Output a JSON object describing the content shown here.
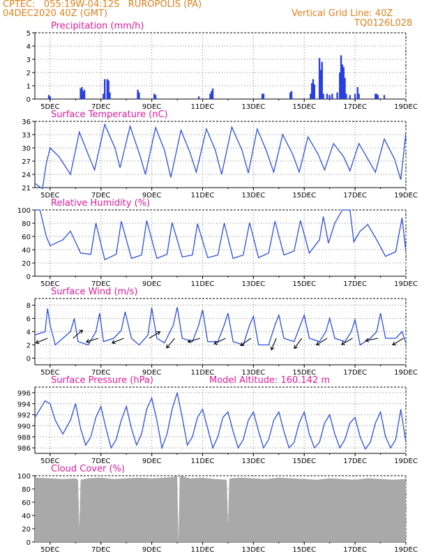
{
  "header": {
    "line1": "CPTEC:   055:19W-04:12S   RUROPOLIS (PA)",
    "line2": "04DEC2020 40Z (GMT)",
    "grid_note": "Vertical Grid Line: 40Z",
    "code": "TQ0126L028"
  },
  "colors": {
    "line": "#2a4de0",
    "bar": "#2a3fe0",
    "cloud": "#a9a9a9",
    "title": "#e01a9a",
    "header": "#e0801a",
    "arrow": "#000000"
  },
  "x_axis": {
    "ticks": [
      "5DEC",
      "7DEC",
      "9DEC",
      "11DEC",
      "13DEC",
      "15DEC",
      "17DEC",
      "19DEC"
    ],
    "tick_days": [
      5,
      7,
      9,
      11,
      13,
      15,
      17,
      19
    ],
    "range_days": [
      4.4,
      19.0
    ]
  },
  "chart_data": [
    {
      "type": "bar",
      "title": "Precipitation (mm/h)",
      "ylim": [
        0,
        5
      ],
      "yticks": [
        0,
        1,
        2,
        3,
        4,
        5
      ],
      "series": [
        {
          "x": [
            4.95,
            5.0,
            6.2,
            6.25,
            6.3,
            6.35,
            7.1,
            7.15,
            7.25,
            7.3,
            7.35,
            8.45,
            8.5,
            9.1,
            9.15,
            10.85,
            11.3,
            11.35,
            11.4,
            13.35,
            13.4,
            14.45,
            14.5,
            15.25,
            15.3,
            15.35,
            15.4,
            15.6,
            15.65,
            15.7,
            15.75,
            15.9,
            16.0,
            16.1,
            16.3,
            16.4,
            16.45,
            16.5,
            16.55,
            16.6,
            16.65,
            16.8,
            17.0,
            17.1,
            17.15,
            17.8,
            17.85,
            17.9,
            18.15
          ],
          "values": [
            0.3,
            0.2,
            0.8,
            0.9,
            0.6,
            0.7,
            0.4,
            1.5,
            1.5,
            1.4,
            0.5,
            0.7,
            0.5,
            0.4,
            0.3,
            0.2,
            0.4,
            0.6,
            0.8,
            0.4,
            0.4,
            0.5,
            0.6,
            0.4,
            1.2,
            1.5,
            1.1,
            3.1,
            2.2,
            2.8,
            0.4,
            0.4,
            0.3,
            0.4,
            0.5,
            2.0,
            3.3,
            2.6,
            2.4,
            1.6,
            0.4,
            0.3,
            0.4,
            0.9,
            0.4,
            0.4,
            0.4,
            0.3,
            0.3
          ]
        }
      ]
    },
    {
      "type": "line",
      "title": "Surface Temperature (nC)",
      "ylim": [
        21,
        36
      ],
      "yticks": [
        21,
        24,
        27,
        30,
        33,
        36
      ],
      "series": [
        {
          "x": [
            4.4,
            4.55,
            4.7,
            4.85,
            5.0,
            5.35,
            5.8,
            6.15,
            6.5,
            6.75,
            7.15,
            7.55,
            7.75,
            8.15,
            8.55,
            8.75,
            9.15,
            9.5,
            9.75,
            10.15,
            10.5,
            10.75,
            11.15,
            11.5,
            11.75,
            12.15,
            12.55,
            12.8,
            13.15,
            13.5,
            13.8,
            14.15,
            14.55,
            14.8,
            15.15,
            15.55,
            15.8,
            16.15,
            16.55,
            16.8,
            17.15,
            17.5,
            17.8,
            18.15,
            18.55,
            18.8,
            19.0
          ],
          "values": [
            22.0,
            21.3,
            20.8,
            26.5,
            30.0,
            28.0,
            24.0,
            33.6,
            28.5,
            25.0,
            35.3,
            30.0,
            25.5,
            34.9,
            28.0,
            24.0,
            34.6,
            29.5,
            23.3,
            34.0,
            29.0,
            24.5,
            34.3,
            29.5,
            24.0,
            34.7,
            29.5,
            24.3,
            34.3,
            29.5,
            24.5,
            33.0,
            28.5,
            24.5,
            32.5,
            28.5,
            25.0,
            31.0,
            28.0,
            24.8,
            31.0,
            27.5,
            24.5,
            32.0,
            27.5,
            22.8,
            33.5
          ]
        }
      ]
    },
    {
      "type": "line",
      "title": "Relative Humidity (%)",
      "ylim": [
        0,
        100
      ],
      "yticks": [
        0,
        20,
        40,
        60,
        80,
        100
      ],
      "series": [
        {
          "x": [
            4.4,
            4.6,
            4.85,
            5.0,
            5.5,
            5.8,
            6.2,
            6.6,
            6.8,
            7.15,
            7.6,
            7.8,
            8.2,
            8.6,
            8.8,
            9.2,
            9.6,
            9.8,
            10.2,
            10.6,
            10.8,
            11.2,
            11.6,
            11.85,
            12.2,
            12.6,
            12.85,
            13.2,
            13.6,
            13.85,
            14.2,
            14.6,
            14.85,
            15.2,
            15.6,
            15.75,
            15.95,
            16.2,
            16.5,
            16.8,
            16.95,
            17.2,
            17.5,
            17.85,
            18.2,
            18.6,
            18.85,
            19.0
          ],
          "values": [
            100,
            100,
            60,
            46,
            55,
            68,
            35,
            33,
            80,
            25,
            33,
            83,
            27,
            32,
            84,
            27,
            33,
            81,
            29,
            32,
            79,
            28,
            32,
            80,
            27,
            32,
            81,
            28,
            35,
            83,
            32,
            38,
            84,
            35,
            55,
            90,
            50,
            80,
            100,
            100,
            52,
            68,
            78,
            55,
            30,
            37,
            88,
            37
          ]
        }
      ]
    },
    {
      "type": "line",
      "title": "Surface Wind (m/s)",
      "ylim": [
        0,
        8
      ],
      "yticks": [
        0,
        2,
        4,
        6,
        8
      ],
      "series": [
        {
          "x": [
            4.4,
            4.8,
            4.9,
            5.0,
            5.2,
            5.5,
            5.8,
            5.95,
            6.1,
            6.5,
            6.8,
            6.95,
            7.1,
            7.5,
            7.8,
            7.95,
            8.2,
            8.5,
            8.85,
            9.0,
            9.2,
            9.5,
            9.85,
            10.0,
            10.2,
            10.6,
            10.85,
            11.0,
            11.2,
            11.6,
            11.85,
            12.0,
            12.2,
            12.6,
            12.85,
            13.0,
            13.2,
            13.6,
            13.85,
            14.0,
            14.2,
            14.6,
            14.85,
            15.0,
            15.2,
            15.6,
            15.85,
            16.0,
            16.2,
            16.6,
            16.85,
            17.0,
            17.2,
            17.6,
            17.85,
            18.0,
            18.2,
            18.6,
            18.85,
            19.0
          ],
          "values": [
            3.5,
            4.0,
            7.5,
            5.0,
            2.0,
            3.0,
            4.0,
            6.0,
            2.5,
            2.0,
            4.0,
            6.8,
            2.5,
            3.0,
            4.2,
            7.0,
            3.0,
            2.0,
            3.5,
            7.6,
            3.0,
            2.3,
            5.0,
            7.7,
            3.0,
            2.5,
            5.0,
            7.3,
            2.5,
            2.5,
            5.0,
            6.8,
            2.5,
            2.0,
            5.0,
            6.3,
            2.0,
            2.0,
            5.0,
            6.5,
            3.0,
            2.5,
            5.0,
            6.5,
            3.0,
            2.5,
            4.0,
            6.0,
            3.0,
            2.5,
            4.0,
            5.8,
            2.0,
            3.0,
            4.0,
            6.8,
            3.0,
            3.0,
            4.0,
            2.3
          ]
        }
      ],
      "wind_arrows": {
        "x": [
          4.9,
          5.9,
          6.9,
          7.9,
          8.9,
          9.9,
          10.9,
          11.9,
          12.9,
          13.9,
          14.9,
          15.9,
          16.9,
          17.9,
          18.9
        ],
        "u": [
          -1.0,
          0.7,
          -1.0,
          -1.0,
          1.3,
          -0.5,
          -1.0,
          -1.0,
          -0.7,
          -0.3,
          -0.5,
          -0.8,
          -0.7,
          -1.0,
          -0.8
        ],
        "v": [
          -0.4,
          0.6,
          -0.3,
          -0.4,
          0.8,
          -0.6,
          -0.3,
          -0.5,
          -0.5,
          -0.7,
          -0.7,
          -0.5,
          -0.4,
          -0.2,
          -0.5
        ]
      }
    },
    {
      "type": "line",
      "title": "Surface Pressure (hPa)",
      "annotation": "Model Altitude: 160.142 m",
      "ylim": [
        985,
        997
      ],
      "yticks": [
        986,
        988,
        990,
        992,
        994,
        996
      ],
      "series": [
        {
          "x": [
            4.4,
            4.6,
            4.8,
            5.0,
            5.2,
            5.5,
            5.8,
            6.0,
            6.2,
            6.4,
            6.6,
            6.8,
            7.0,
            7.2,
            7.4,
            7.6,
            7.8,
            8.0,
            8.2,
            8.4,
            8.6,
            8.8,
            9.0,
            9.2,
            9.4,
            9.6,
            9.8,
            10.0,
            10.2,
            10.4,
            10.6,
            10.8,
            11.0,
            11.2,
            11.4,
            11.6,
            11.8,
            12.0,
            12.2,
            12.4,
            12.6,
            12.8,
            13.0,
            13.2,
            13.4,
            13.6,
            13.8,
            14.0,
            14.2,
            14.4,
            14.6,
            14.8,
            15.0,
            15.2,
            15.4,
            15.6,
            15.8,
            16.0,
            16.2,
            16.4,
            16.6,
            16.8,
            17.0,
            17.2,
            17.4,
            17.6,
            17.8,
            18.0,
            18.2,
            18.4,
            18.6,
            18.8,
            19.0
          ],
          "values": [
            991.5,
            993.0,
            994.5,
            994.0,
            991.0,
            988.5,
            991.0,
            994.0,
            989.5,
            986.5,
            988.0,
            991.5,
            993.5,
            989.5,
            986.0,
            987.5,
            991.0,
            993.5,
            989.5,
            986.5,
            988.5,
            993.0,
            995.0,
            991.0,
            986.0,
            988.5,
            993.0,
            996.0,
            991.5,
            986.5,
            988.0,
            991.5,
            993.0,
            989.5,
            986.0,
            988.0,
            991.5,
            992.5,
            989.0,
            986.0,
            987.5,
            991.0,
            992.5,
            989.0,
            986.0,
            987.5,
            991.0,
            992.5,
            989.0,
            986.0,
            987.0,
            990.5,
            992.5,
            988.5,
            986.0,
            987.0,
            990.5,
            992.0,
            988.5,
            986.0,
            987.5,
            990.5,
            991.5,
            988.0,
            985.8,
            987.0,
            990.5,
            992.5,
            988.0,
            986.0,
            987.5,
            993.0,
            987.0
          ]
        }
      ]
    },
    {
      "type": "area",
      "title": "Cloud Cover (%)",
      "ylim": [
        0,
        100
      ],
      "yticks": [
        0,
        20,
        40,
        60,
        80,
        100
      ],
      "series": [
        {
          "x": [
            4.4,
            5.0,
            5.5,
            6.0,
            6.1,
            6.15,
            6.2,
            6.5,
            7.0,
            7.5,
            8.0,
            8.5,
            9.0,
            9.5,
            9.85,
            10.0,
            10.05,
            10.1,
            10.5,
            11.0,
            11.5,
            11.95,
            12.0,
            12.05,
            12.1,
            12.5,
            13.0,
            13.5,
            14.0,
            14.5,
            15.0,
            15.5,
            16.0,
            16.5,
            17.0,
            17.5,
            18.0,
            18.5,
            19.0
          ],
          "values": [
            97,
            96,
            95,
            96,
            94,
            20,
            94,
            96,
            97,
            95,
            96,
            97,
            96,
            97,
            98,
            100,
            0,
            100,
            96,
            97,
            95,
            94,
            27,
            95,
            96,
            97,
            96,
            95,
            97,
            96,
            95,
            94,
            96,
            95,
            94,
            96,
            95,
            94,
            95
          ]
        }
      ]
    }
  ]
}
